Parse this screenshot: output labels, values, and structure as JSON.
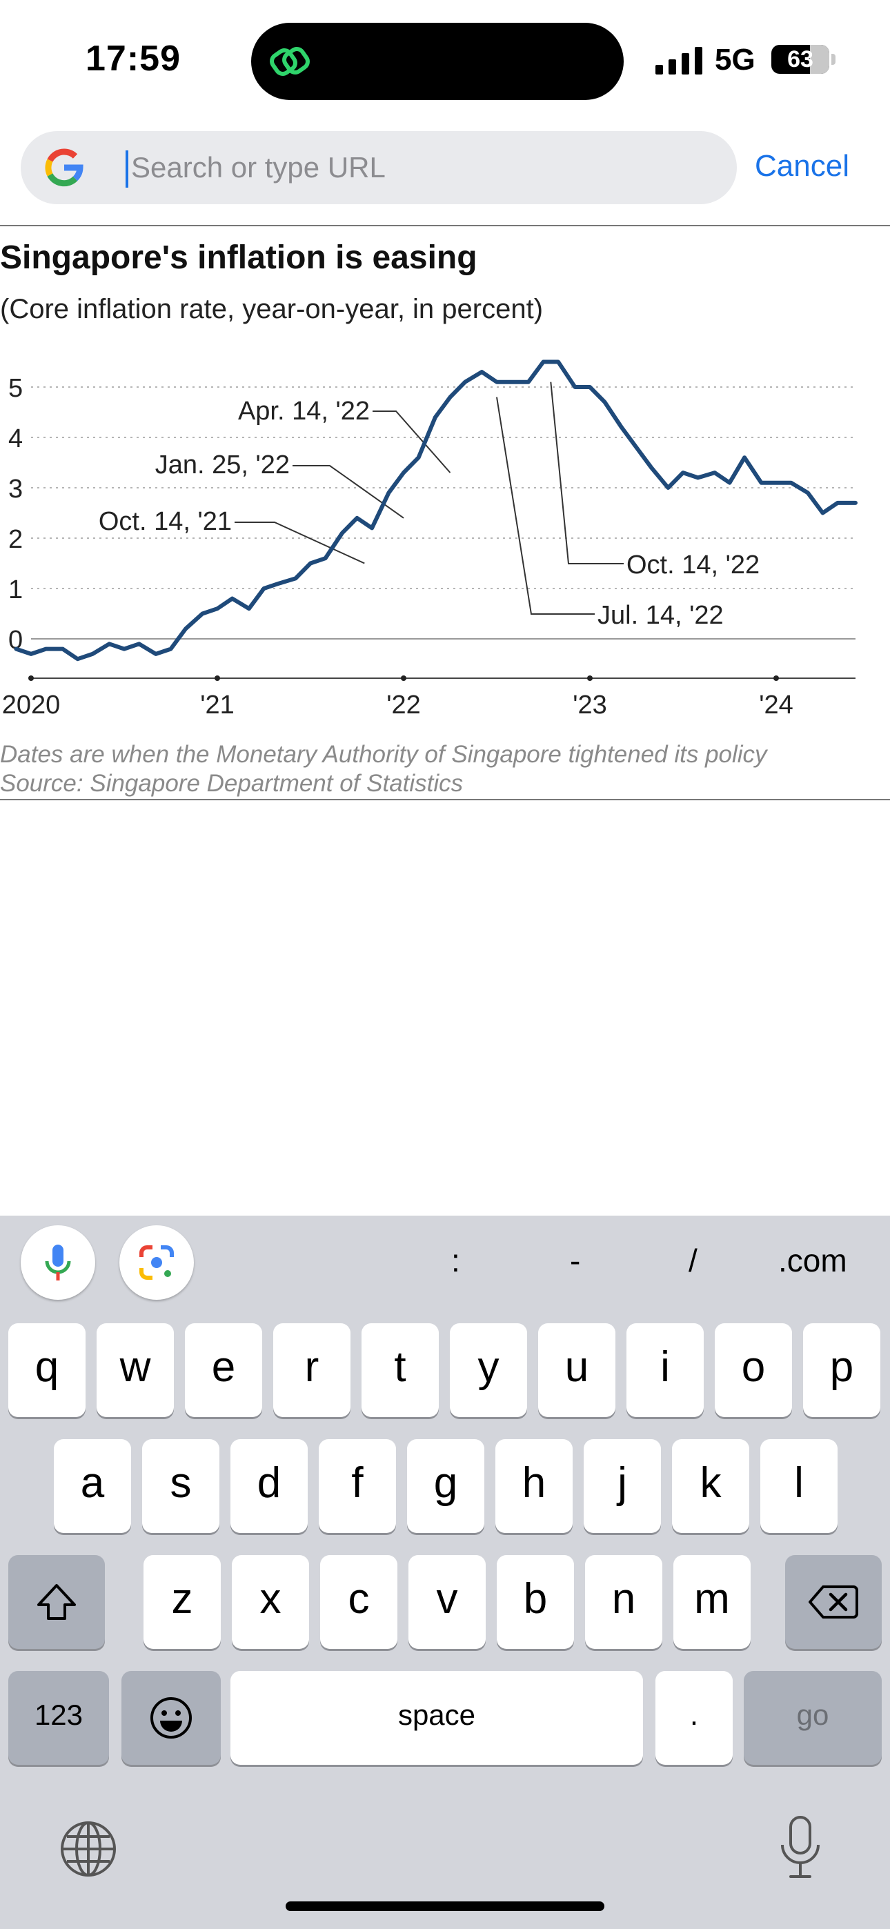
{
  "status_bar": {
    "time": "17:59",
    "network": "5G",
    "battery": "63"
  },
  "url_bar": {
    "placeholder": "Search or type URL",
    "value": "",
    "cancel_label": "Cancel"
  },
  "chart": {
    "title": "Singapore's inflation is easing",
    "subtitle": "(Core inflation rate, year-on-year, in percent)",
    "footnote": "Dates are when the Monetary Authority of Singapore tightened its policy",
    "source": "Source: Singapore Department of Statistics",
    "colors": {
      "line": "#1f4a7a",
      "grid": "#b5b5b5",
      "axis": "#444444"
    }
  },
  "chart_data": {
    "type": "line",
    "title": "Singapore's inflation is easing",
    "subtitle": "(Core inflation rate, year-on-year, in percent)",
    "xlabel": "",
    "ylabel": "",
    "y_ticks": [
      0,
      1,
      2,
      3,
      4,
      5
    ],
    "x_ticks": [
      {
        "x": 2020.0,
        "label": "2020"
      },
      {
        "x": 2021.0,
        "label": "'21"
      },
      {
        "x": 2022.0,
        "label": "'22"
      },
      {
        "x": 2023.0,
        "label": "'23"
      },
      {
        "x": 2024.0,
        "label": "'24"
      }
    ],
    "xlim": [
      2020.0,
      2024.58
    ],
    "ylim": [
      -0.5,
      5.5
    ],
    "grid": true,
    "series": [
      {
        "x": [
          2019.92,
          2020.0,
          2020.08,
          2020.17,
          2020.25,
          2020.33,
          2020.42,
          2020.5,
          2020.58,
          2020.67,
          2020.75,
          2020.83,
          2020.92,
          2021.0,
          2021.08,
          2021.17,
          2021.25,
          2021.33,
          2021.42,
          2021.5,
          2021.58,
          2021.67,
          2021.75,
          2021.83,
          2021.92,
          2022.0,
          2022.08,
          2022.17,
          2022.25,
          2022.33,
          2022.42,
          2022.5,
          2022.58,
          2022.67,
          2022.75,
          2022.83,
          2022.92,
          2023.0,
          2023.08,
          2023.17,
          2023.25,
          2023.33,
          2023.42,
          2023.5,
          2023.58,
          2023.67,
          2023.75,
          2023.83,
          2023.92,
          2024.0,
          2024.08,
          2024.17,
          2024.25,
          2024.33,
          2024.42,
          2024.5,
          2024.58
        ],
        "y": [
          -0.2,
          -0.3,
          -0.2,
          -0.2,
          -0.4,
          -0.3,
          -0.1,
          -0.2,
          -0.1,
          -0.3,
          -0.2,
          0.2,
          0.5,
          0.6,
          0.8,
          0.6,
          1.0,
          1.1,
          1.2,
          1.5,
          1.6,
          2.1,
          2.4,
          2.2,
          2.9,
          3.3,
          3.6,
          4.4,
          4.8,
          5.1,
          5.3,
          5.1,
          5.1,
          5.1,
          5.5,
          5.5,
          5.0,
          5.0,
          4.7,
          4.2,
          3.8,
          3.4,
          3.0,
          3.3,
          3.2,
          3.3,
          3.1,
          3.6,
          3.1,
          3.1,
          3.1,
          2.9,
          2.5,
          2.7,
          2.7,
          2.7,
          2.7
        ]
      }
    ],
    "annotations": [
      {
        "label": "Oct. 14, '21",
        "x": 2021.79,
        "y": 1.5
      },
      {
        "label": "Jan. 25, '22",
        "x": 2022.0,
        "y": 2.4
      },
      {
        "label": "Apr. 14, '22",
        "x": 2022.25,
        "y": 3.3
      },
      {
        "label": "Jul. 14, '22",
        "x": 2022.5,
        "y": 4.8
      },
      {
        "label": "Oct. 14, '22",
        "x": 2022.79,
        "y": 5.1
      }
    ]
  },
  "keyboard": {
    "suggestions": [
      ":",
      "-",
      "/",
      ".com"
    ],
    "row1": [
      "q",
      "w",
      "e",
      "r",
      "t",
      "y",
      "u",
      "i",
      "o",
      "p"
    ],
    "row2": [
      "a",
      "s",
      "d",
      "f",
      "g",
      "h",
      "j",
      "k",
      "l"
    ],
    "row3": [
      "z",
      "x",
      "c",
      "v",
      "b",
      "n",
      "m"
    ],
    "numbers_label": "123",
    "space_label": "space",
    "period_label": ".",
    "go_label": "go",
    "icons": [
      "mic-icon",
      "google-lens-icon",
      "shift-icon",
      "delete-icon",
      "emoji-icon",
      "globe-icon",
      "dictation-icon"
    ]
  }
}
